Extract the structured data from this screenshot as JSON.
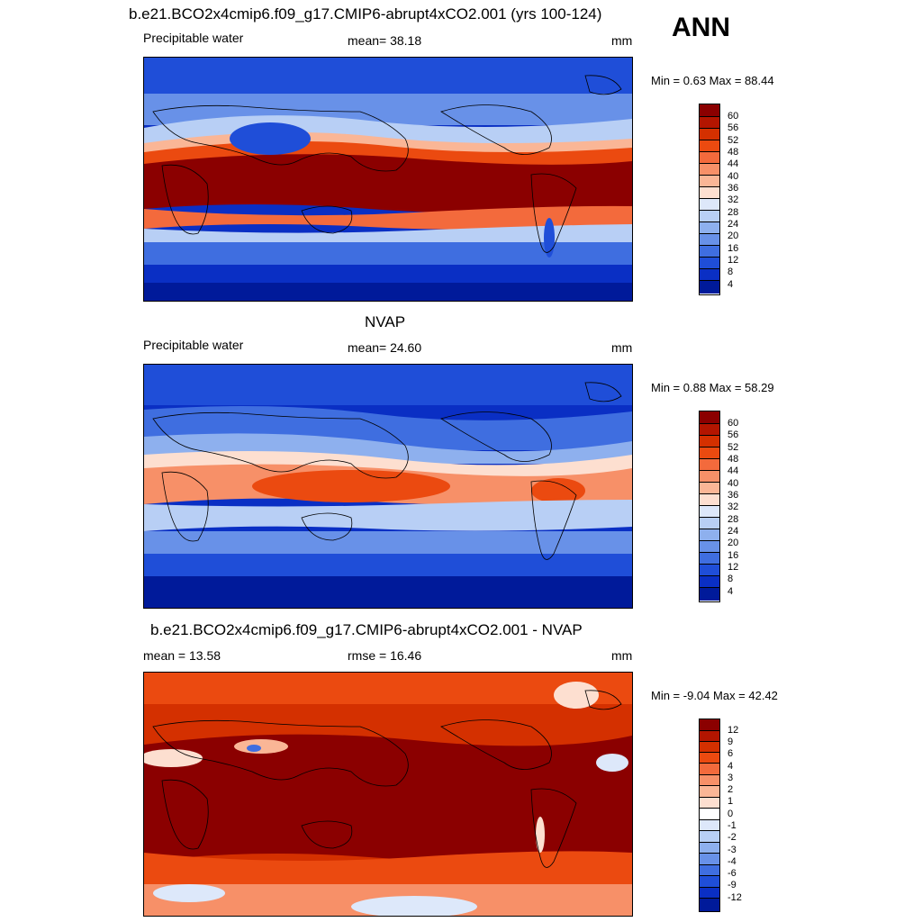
{
  "season": "ANN",
  "panels": [
    {
      "title": "b.e21.BCO2x4cmip6.f09_g17.CMIP6-abrupt4xCO2.001 (yrs 100-124)",
      "left_label": "Precipitable water",
      "center_label": "mean=  38.18",
      "units": "mm",
      "minmax": "Min =   0.63 Max =  88.44",
      "colorbar_ticks": [
        "60",
        "56",
        "52",
        "48",
        "44",
        "40",
        "36",
        "32",
        "28",
        "24",
        "20",
        "16",
        "12",
        "8",
        "4"
      ]
    },
    {
      "title": "NVAP",
      "left_label": "Precipitable water",
      "center_label": "mean=  24.60",
      "units": "mm",
      "minmax": "Min =   0.88 Max =  58.29",
      "colorbar_ticks": [
        "60",
        "56",
        "52",
        "48",
        "44",
        "40",
        "36",
        "32",
        "28",
        "24",
        "20",
        "16",
        "12",
        "8",
        "4"
      ]
    },
    {
      "title": "b.e21.BCO2x4cmip6.f09_g17.CMIP6-abrupt4xCO2.001 - NVAP",
      "left_label": "mean =  13.58",
      "center_label": "rmse =  16.46",
      "units": "mm",
      "minmax": "Min =  -9.04 Max =  42.42",
      "colorbar_ticks": [
        "12",
        "9",
        "6",
        "4",
        "3",
        "2",
        "1",
        "0",
        "-1",
        "-2",
        "-3",
        "-4",
        "-6",
        "-9",
        "-12"
      ]
    }
  ],
  "colors": {
    "abs_palette": [
      "#8b0000",
      "#b31500",
      "#d43000",
      "#eb4a10",
      "#f36a3c",
      "#f79068",
      "#fab696",
      "#fddfd0",
      "#dde8fa",
      "#b8cff5",
      "#8eb0ee",
      "#6891e8",
      "#3f6ee0",
      "#1f4ed8",
      "#0a2fc4",
      "#001a9a"
    ],
    "diff_palette": [
      "#8b0000",
      "#b31500",
      "#d43000",
      "#eb4a10",
      "#f36a3c",
      "#f79068",
      "#fab696",
      "#fddfd0",
      "#ffffff",
      "#dde8fa",
      "#b8cff5",
      "#8eb0ee",
      "#6891e8",
      "#3f6ee0",
      "#1f4ed8",
      "#0a2fc4",
      "#001a9a"
    ]
  }
}
